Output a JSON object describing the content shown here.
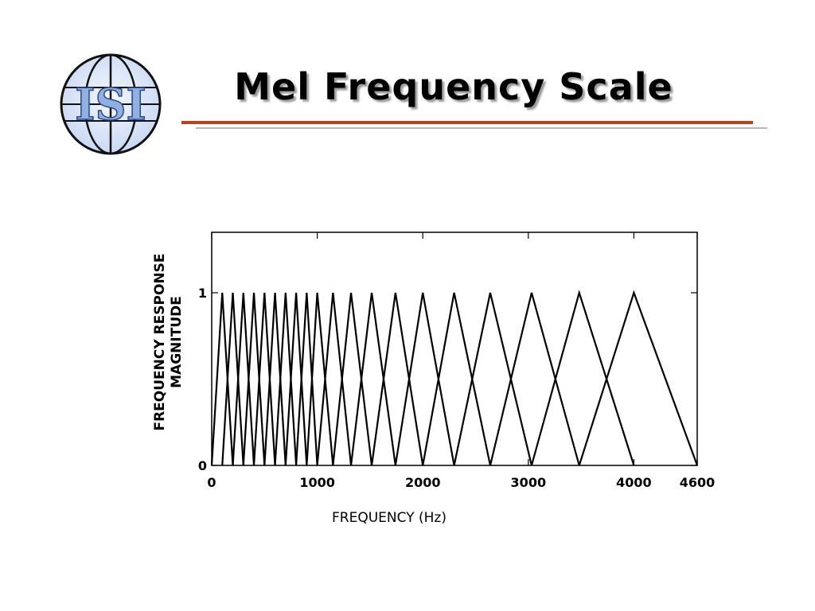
{
  "slide": {
    "title": "Mel Frequency Scale",
    "logo_text": "ISI"
  },
  "chart_data": {
    "type": "line",
    "title": "",
    "xlabel": "FREQUENCY  (Hz)",
    "ylabel_line1": "FREQUENCY RESPONSE",
    "ylabel_line2": "MAGNITUDE",
    "xlim": [
      0,
      4600
    ],
    "ylim": [
      0,
      1.35
    ],
    "x_ticks": [
      {
        "value": 0,
        "label": "0"
      },
      {
        "value": 1000,
        "label": "1000"
      },
      {
        "value": 2000,
        "label": "2000"
      },
      {
        "value": 3000,
        "label": "3000"
      },
      {
        "value": 4000,
        "label": "4000"
      },
      {
        "value": 4600,
        "label": "4600"
      }
    ],
    "y_ticks": [
      {
        "value": 0,
        "label": "0"
      },
      {
        "value": 1,
        "label": "1"
      }
    ],
    "filter_peaks_hz": [
      100,
      200,
      300,
      400,
      500,
      600,
      700,
      800,
      900,
      1000,
      1149,
      1320,
      1516,
      1741,
      2000,
      2297,
      2639,
      3031,
      3482,
      4000
    ],
    "filter_edges_hz": [
      0,
      4600
    ],
    "peak_magnitude": 1,
    "grid": false
  }
}
